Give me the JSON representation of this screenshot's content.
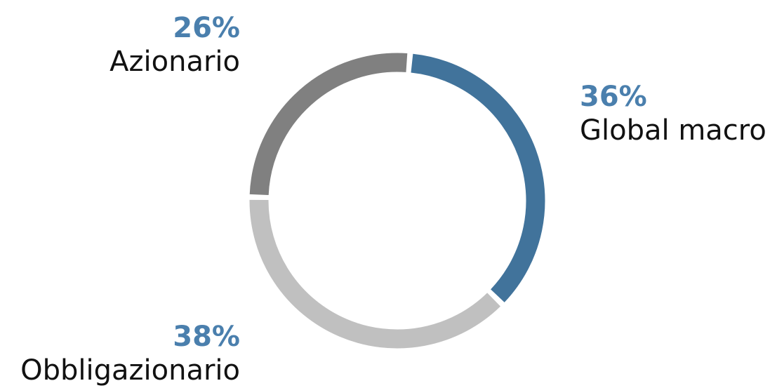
{
  "chart_data": {
    "type": "pie",
    "variant": "donut",
    "slices": [
      {
        "name": "Global macro",
        "value": 36,
        "label": "36%",
        "color": "#41739b"
      },
      {
        "name": "Obbligazionario",
        "value": 38,
        "label": "38%",
        "color": "#c0c0c0"
      },
      {
        "name": "Azionario",
        "value": 26,
        "label": "26%",
        "color": "#808080"
      }
    ],
    "percent_color": "#4a7fad"
  }
}
